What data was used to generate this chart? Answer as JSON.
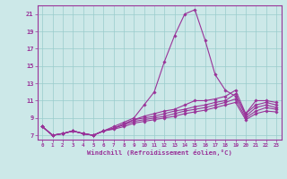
{
  "xlabel": "Windchill (Refroidissement éolien,°C)",
  "x": [
    0,
    1,
    2,
    3,
    4,
    5,
    6,
    7,
    8,
    9,
    10,
    11,
    12,
    13,
    14,
    15,
    16,
    17,
    18,
    19,
    20,
    21,
    22,
    23
  ],
  "lines": [
    [
      8.0,
      7.0,
      7.2,
      7.5,
      7.2,
      7.0,
      7.5,
      8.0,
      8.5,
      9.0,
      10.5,
      12.0,
      15.5,
      18.5,
      21.0,
      21.5,
      18.0,
      14.0,
      12.2,
      11.5,
      9.5,
      11.0,
      11.0,
      10.8
    ],
    [
      8.0,
      7.0,
      7.2,
      7.5,
      7.2,
      7.0,
      7.5,
      7.8,
      8.3,
      8.8,
      9.2,
      9.5,
      9.8,
      10.0,
      10.5,
      11.0,
      11.0,
      11.2,
      11.5,
      12.2,
      9.5,
      10.5,
      10.8,
      10.5
    ],
    [
      8.0,
      7.0,
      7.2,
      7.5,
      7.2,
      7.0,
      7.5,
      7.8,
      8.3,
      8.8,
      9.0,
      9.2,
      9.5,
      9.8,
      10.0,
      10.3,
      10.5,
      10.8,
      11.0,
      11.8,
      9.2,
      10.2,
      10.5,
      10.2
    ],
    [
      8.0,
      7.0,
      7.2,
      7.5,
      7.2,
      7.0,
      7.5,
      7.8,
      8.2,
      8.6,
      8.8,
      9.0,
      9.2,
      9.5,
      9.8,
      10.0,
      10.2,
      10.5,
      10.8,
      11.2,
      9.0,
      9.8,
      10.2,
      10.0
    ],
    [
      8.0,
      7.0,
      7.2,
      7.5,
      7.2,
      7.0,
      7.5,
      7.7,
      8.0,
      8.4,
      8.6,
      8.8,
      9.0,
      9.2,
      9.5,
      9.7,
      9.9,
      10.2,
      10.5,
      10.8,
      8.8,
      9.5,
      9.8,
      9.7
    ]
  ],
  "line_color": "#993399",
  "bg_color": "#cce8e8",
  "grid_color": "#99cccc",
  "ylim": [
    6.5,
    22.0
  ],
  "yticks": [
    7,
    9,
    11,
    13,
    15,
    17,
    19,
    21
  ],
  "xlim": [
    -0.5,
    23.5
  ],
  "xticks": [
    0,
    1,
    2,
    3,
    4,
    5,
    6,
    7,
    8,
    9,
    10,
    11,
    12,
    13,
    14,
    15,
    16,
    17,
    18,
    19,
    20,
    21,
    22,
    23
  ]
}
